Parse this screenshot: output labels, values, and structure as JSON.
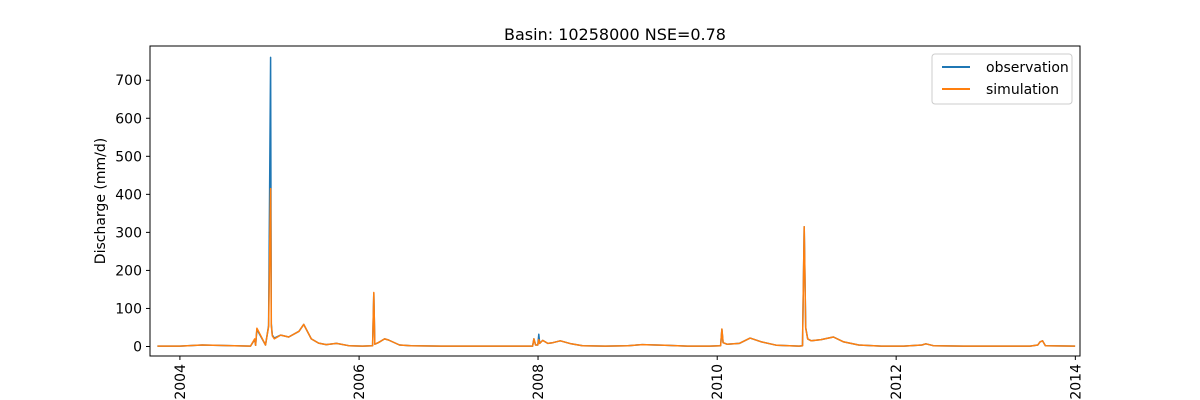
{
  "chart_data": {
    "type": "line",
    "title": "Basin: 10258000 NSE=0.78",
    "xlabel": "",
    "ylabel": "Discharge (mm/d)",
    "xlim": [
      "2003-09-01",
      "2014-01-20"
    ],
    "ylim": [
      -25,
      790
    ],
    "x_ticks": [
      "2004",
      "2006",
      "2008",
      "2010",
      "2012",
      "2014"
    ],
    "y_ticks": [
      "0",
      "100",
      "200",
      "300",
      "400",
      "500",
      "600",
      "700"
    ],
    "grid": false,
    "legend_position": "top-right",
    "series": [
      {
        "name": "observation",
        "color": "#1f77b4",
        "x": [
          "2003-10-01",
          "2004-01-01",
          "2004-04-01",
          "2004-10-15",
          "2004-11-01",
          "2004-11-05",
          "2004-11-10",
          "2004-12-15",
          "2004-12-28",
          "2005-01-05",
          "2005-01-08",
          "2005-01-12",
          "2005-01-20",
          "2005-02-15",
          "2005-03-20",
          "2005-05-01",
          "2005-05-20",
          "2005-06-20",
          "2005-07-20",
          "2005-08-20",
          "2005-10-01",
          "2005-11-20",
          "2006-01-15",
          "2006-02-25",
          "2006-03-02",
          "2006-03-06",
          "2006-03-20",
          "2006-04-15",
          "2006-05-01",
          "2006-06-15",
          "2006-08-01",
          "2006-12-01",
          "2007-06-01",
          "2007-12-10",
          "2007-12-15",
          "2007-12-22",
          "2007-12-31",
          "2008-01-04",
          "2008-01-08",
          "2008-01-20",
          "2008-02-10",
          "2008-03-01",
          "2008-04-01",
          "2008-05-15",
          "2008-07-01",
          "2008-10-01",
          "2009-01-01",
          "2009-03-01",
          "2009-06-01",
          "2009-09-01",
          "2009-12-01",
          "2010-01-15",
          "2010-01-20",
          "2010-01-25",
          "2010-02-10",
          "2010-04-01",
          "2010-05-15",
          "2010-07-01",
          "2010-09-01",
          "2010-12-01",
          "2010-12-15",
          "2010-12-22",
          "2010-12-28",
          "2011-01-05",
          "2011-01-20",
          "2011-03-01",
          "2011-04-20",
          "2011-06-01",
          "2011-08-01",
          "2011-11-01",
          "2012-02-01",
          "2012-04-15",
          "2012-05-01",
          "2012-06-01",
          "2012-10-01",
          "2013-03-01",
          "2013-07-01",
          "2013-08-01",
          "2013-08-10",
          "2013-08-20",
          "2013-09-01",
          "2013-12-31"
        ],
        "values": [
          1,
          1,
          4,
          1,
          18,
          3,
          45,
          4,
          55,
          760,
          60,
          30,
          22,
          30,
          25,
          40,
          58,
          20,
          9,
          5,
          8,
          2,
          1,
          2,
          140,
          6,
          10,
          20,
          17,
          4,
          2,
          1,
          1,
          1,
          20,
          4,
          4,
          32,
          8,
          16,
          8,
          10,
          15,
          7,
          2,
          1,
          2,
          5,
          3,
          1,
          1,
          2,
          45,
          10,
          6,
          8,
          22,
          12,
          3,
          1,
          2,
          315,
          50,
          20,
          15,
          18,
          25,
          12,
          4,
          1,
          1,
          4,
          7,
          2,
          1,
          1,
          1,
          4,
          12,
          15,
          2,
          1
        ]
      },
      {
        "name": "simulation",
        "color": "#ff7f0e",
        "x": [
          "2003-10-01",
          "2004-01-01",
          "2004-04-01",
          "2004-10-15",
          "2004-11-01",
          "2004-11-05",
          "2004-11-10",
          "2004-12-15",
          "2004-12-28",
          "2005-01-05",
          "2005-01-08",
          "2005-01-12",
          "2005-01-20",
          "2005-02-15",
          "2005-03-20",
          "2005-05-01",
          "2005-05-20",
          "2005-06-20",
          "2005-07-20",
          "2005-08-20",
          "2005-10-01",
          "2005-11-20",
          "2006-01-15",
          "2006-02-25",
          "2006-03-02",
          "2006-03-06",
          "2006-03-20",
          "2006-04-15",
          "2006-05-01",
          "2006-06-15",
          "2006-08-01",
          "2006-12-01",
          "2007-06-01",
          "2007-12-10",
          "2007-12-15",
          "2007-12-22",
          "2007-12-31",
          "2008-01-04",
          "2008-01-08",
          "2008-01-20",
          "2008-02-10",
          "2008-03-01",
          "2008-04-01",
          "2008-05-15",
          "2008-07-01",
          "2008-10-01",
          "2009-01-01",
          "2009-03-01",
          "2009-06-01",
          "2009-09-01",
          "2009-12-01",
          "2010-01-15",
          "2010-01-20",
          "2010-01-25",
          "2010-02-10",
          "2010-04-01",
          "2010-05-15",
          "2010-07-01",
          "2010-09-01",
          "2010-12-01",
          "2010-12-15",
          "2010-12-22",
          "2010-12-28",
          "2011-01-05",
          "2011-01-20",
          "2011-03-01",
          "2011-04-20",
          "2011-06-01",
          "2011-08-01",
          "2011-11-01",
          "2012-02-01",
          "2012-04-15",
          "2012-05-01",
          "2012-06-01",
          "2012-10-01",
          "2013-03-01",
          "2013-07-01",
          "2013-08-01",
          "2013-08-10",
          "2013-08-20",
          "2013-09-01",
          "2013-12-31"
        ],
        "values": [
          1,
          1,
          4,
          1,
          20,
          3,
          48,
          4,
          52,
          415,
          55,
          28,
          20,
          30,
          25,
          40,
          58,
          20,
          9,
          5,
          8,
          2,
          1,
          2,
          142,
          6,
          10,
          20,
          17,
          4,
          2,
          1,
          1,
          1,
          20,
          4,
          4,
          18,
          8,
          16,
          8,
          10,
          15,
          7,
          2,
          1,
          2,
          5,
          3,
          1,
          1,
          2,
          46,
          10,
          6,
          8,
          22,
          12,
          3,
          1,
          2,
          315,
          48,
          20,
          15,
          18,
          25,
          12,
          4,
          1,
          1,
          4,
          7,
          2,
          1,
          1,
          1,
          4,
          12,
          15,
          2,
          1
        ]
      }
    ]
  }
}
